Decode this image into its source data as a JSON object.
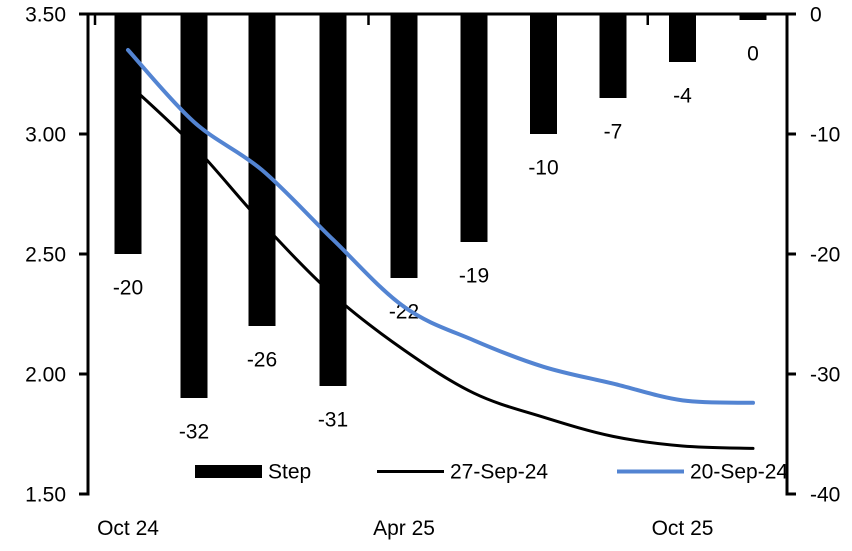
{
  "chart_data": {
    "type": "bar+line",
    "title": "",
    "x_axis": {
      "num_categories": 10,
      "visible_tick_labels": [
        {
          "text": "Oct 24",
          "category_index": 0
        },
        {
          "text": "Apr 25",
          "category_index": 4
        },
        {
          "text": "Oct 25",
          "category_index": 8
        }
      ]
    },
    "left_axis": {
      "min": 1.5,
      "max": 3.5,
      "tick_labels": [
        "3.50",
        "3.00",
        "2.50",
        "2.00",
        "1.50"
      ],
      "tick_values": [
        3.5,
        3.0,
        2.5,
        2.0,
        1.5
      ]
    },
    "right_axis": {
      "min": -40,
      "max": 0,
      "tick_labels": [
        "0",
        "-10",
        "-20",
        "-30",
        "-40"
      ],
      "tick_values": [
        0,
        -10,
        -20,
        -30,
        -40
      ]
    },
    "bar_series": {
      "name": "Step",
      "axis": "right",
      "color": "#000000",
      "values": [
        -20,
        -32,
        -26,
        -31,
        -22,
        -19,
        -10,
        -7,
        -4,
        0
      ],
      "data_labels": [
        "-20",
        "-32",
        "-26",
        "-31",
        "-22",
        "-19",
        "-10",
        "-7",
        "-4",
        "0"
      ]
    },
    "line_series": [
      {
        "name": "27-Sep-24",
        "axis": "left",
        "color": "#000000",
        "stroke_width": 3,
        "values": [
          3.21,
          2.95,
          2.63,
          2.33,
          2.1,
          1.92,
          1.82,
          1.74,
          1.7,
          1.69
        ]
      },
      {
        "name": "20-Sep-24",
        "axis": "left",
        "color": "#5384d2",
        "stroke_width": 4,
        "values": [
          3.35,
          3.05,
          2.85,
          2.56,
          2.28,
          2.14,
          2.03,
          1.96,
          1.89,
          1.88
        ]
      }
    ],
    "legend": [
      {
        "label": "Step",
        "swatch": "bar",
        "color": "#000000"
      },
      {
        "label": "27-Sep-24",
        "swatch": "line",
        "color": "#000000"
      },
      {
        "label": "20-Sep-24",
        "swatch": "line",
        "color": "#5384d2"
      }
    ],
    "grid": "off",
    "legend_position": "bottom-inside"
  },
  "colors": {
    "background": "#ffffff",
    "text": "#000000",
    "accent_blue": "#5384d2"
  }
}
